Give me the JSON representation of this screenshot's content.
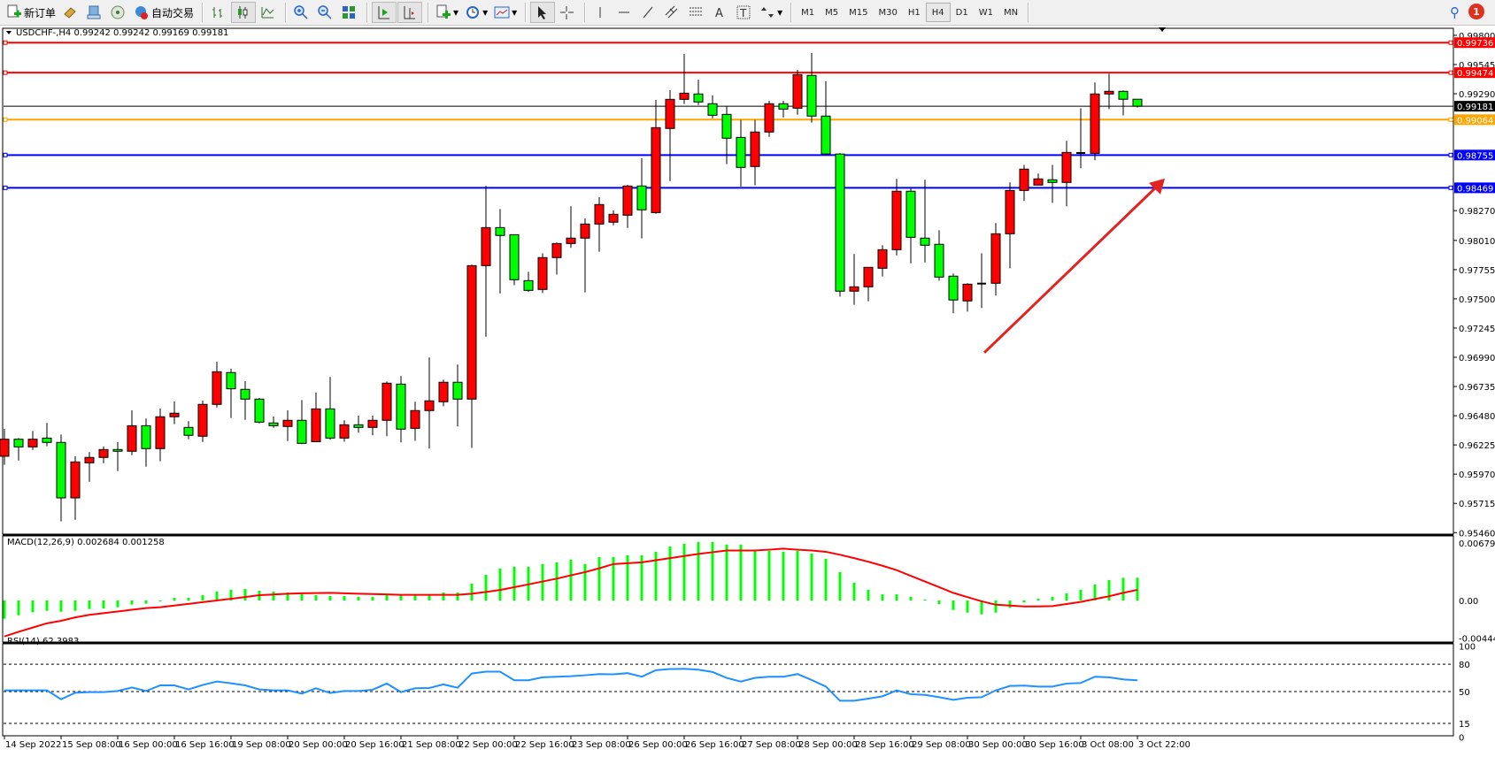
{
  "toolbar": {
    "new_order": "新订单",
    "auto_trading": "自动交易",
    "timeframes": [
      "M1",
      "M5",
      "M15",
      "M30",
      "H1",
      "H4",
      "D1",
      "W1",
      "MN"
    ],
    "active_timeframe": "H4",
    "notification_count": "1",
    "icons": [
      "new-order-icon",
      "history-icon",
      "market-watch-icon",
      "signals-icon",
      "auto-trading-icon",
      "bar-chart-icon",
      "candlestick-icon",
      "line-chart-icon",
      "zoom-in-icon",
      "zoom-out-icon",
      "tile-windows-icon",
      "autoscroll-icon",
      "chart-shift-icon",
      "indicators-icon",
      "periods-icon",
      "templates-icon",
      "cursor-icon",
      "crosshair-icon",
      "vertical-line-icon",
      "horizontal-line-icon",
      "trendline-icon",
      "equidistant-channel-icon",
      "fibonacci-icon",
      "text-icon",
      "text-label-icon",
      "arrows-icon",
      "search-icon",
      "notification-icon"
    ]
  },
  "chart_header": "USDCHF-,H4  0.99242 0.99242 0.99169 0.99181",
  "colors": {
    "bull": "#ff0000",
    "bear": "#00ff00",
    "macd_hist": "#00ff00",
    "signal": "#ff0000",
    "rsi": "#1e90ff",
    "resistance": "#ff0000",
    "pivot": "#ffa500",
    "support": "#0000ff",
    "arrow": "#e32222"
  },
  "chart_data": [
    {
      "type": "candlestick",
      "symbol": "USDCHF-",
      "timeframe": "H4",
      "ylim": [
        0.9546,
        0.998
      ],
      "price_ticks": [
        "0.99800",
        "0.99545",
        "0.99290",
        "0.98270",
        "0.98010",
        "0.97755",
        "0.97500",
        "0.97245",
        "0.96990",
        "0.96735",
        "0.96480",
        "0.96225",
        "0.95970",
        "0.95715",
        "0.95460"
      ],
      "time_labels": [
        {
          "bar": 0,
          "label": "14 Sep 2022"
        },
        {
          "bar": 4,
          "label": "15 Sep 08:00"
        },
        {
          "bar": 8,
          "label": "16 Sep 00:00"
        },
        {
          "bar": 12,
          "label": "16 Sep 16:00"
        },
        {
          "bar": 16,
          "label": "19 Sep 08:00"
        },
        {
          "bar": 20,
          "label": "20 Sep 00:00"
        },
        {
          "bar": 24,
          "label": "20 Sep 16:00"
        },
        {
          "bar": 28,
          "label": "21 Sep 08:00"
        },
        {
          "bar": 32,
          "label": "22 Sep 00:00"
        },
        {
          "bar": 36,
          "label": "22 Sep 16:00"
        },
        {
          "bar": 40,
          "label": "23 Sep 08:00"
        },
        {
          "bar": 44,
          "label": "26 Sep 00:00"
        },
        {
          "bar": 48,
          "label": "26 Sep 16:00"
        },
        {
          "bar": 52,
          "label": "27 Sep 08:00"
        },
        {
          "bar": 56,
          "label": "28 Sep 00:00"
        },
        {
          "bar": 60,
          "label": "28 Sep 16:00"
        },
        {
          "bar": 64,
          "label": "29 Sep 08:00"
        },
        {
          "bar": 68,
          "label": "30 Sep 00:00"
        },
        {
          "bar": 72,
          "label": "30 Sep 16:00"
        },
        {
          "bar": 76,
          "label": "3 Oct 08:00"
        },
        {
          "bar": 80,
          "label": "3 Oct 22:00"
        }
      ],
      "ohlc": [
        [
          0.96126,
          0.96365,
          0.96051,
          0.96275
        ],
        [
          0.96275,
          0.96285,
          0.96089,
          0.96208
        ],
        [
          0.96208,
          0.96347,
          0.96182,
          0.96275
        ],
        [
          0.96285,
          0.96417,
          0.96213,
          0.96247
        ],
        [
          0.96247,
          0.96316,
          0.95557,
          0.95763
        ],
        [
          0.95763,
          0.96126,
          0.95572,
          0.96077
        ],
        [
          0.96069,
          0.96162,
          0.95904,
          0.96116
        ],
        [
          0.96116,
          0.96211,
          0.96066,
          0.96185
        ],
        [
          0.96185,
          0.96249,
          0.95997,
          0.9617
        ],
        [
          0.9617,
          0.96527,
          0.96136,
          0.96393
        ],
        [
          0.96393,
          0.96455,
          0.96035,
          0.96193
        ],
        [
          0.96193,
          0.96542,
          0.96082,
          0.96471
        ],
        [
          0.96471,
          0.96604,
          0.96406,
          0.96502
        ],
        [
          0.96378,
          0.96432,
          0.96275,
          0.96309
        ],
        [
          0.96301,
          0.96612,
          0.96251,
          0.96579
        ],
        [
          0.96579,
          0.96951,
          0.96552,
          0.96864
        ],
        [
          0.96857,
          0.9689,
          0.9646,
          0.96715
        ],
        [
          0.9671,
          0.96782,
          0.96444,
          0.96625
        ],
        [
          0.96625,
          0.96635,
          0.96413,
          0.96424
        ],
        [
          0.96417,
          0.96473,
          0.96375,
          0.96393
        ],
        [
          0.96386,
          0.96527,
          0.96259,
          0.9644
        ],
        [
          0.9644,
          0.96617,
          0.96232,
          0.96239
        ],
        [
          0.96253,
          0.96681,
          0.96253,
          0.9654
        ],
        [
          0.9654,
          0.96818,
          0.9627,
          0.96285
        ],
        [
          0.96285,
          0.9644,
          0.96253,
          0.96401
        ],
        [
          0.96401,
          0.96481,
          0.96332,
          0.96378
        ],
        [
          0.96378,
          0.96481,
          0.96309,
          0.9644
        ],
        [
          0.9644,
          0.96779,
          0.96301,
          0.96764
        ],
        [
          0.96756,
          0.96826,
          0.96247,
          0.96363
        ],
        [
          0.9637,
          0.96602,
          0.96262,
          0.96525
        ],
        [
          0.96525,
          0.96988,
          0.96193,
          0.9661
        ],
        [
          0.96602,
          0.96795,
          0.96563,
          0.96772
        ],
        [
          0.96772,
          0.96926,
          0.96386,
          0.96625
        ],
        [
          0.96625,
          0.97798,
          0.962,
          0.9779
        ],
        [
          0.9779,
          0.98485,
          0.9717,
          0.98122
        ],
        [
          0.98122,
          0.98284,
          0.97548,
          0.98053
        ],
        [
          0.9806,
          0.9806,
          0.9762,
          0.97667
        ],
        [
          0.97659,
          0.97736,
          0.97559,
          0.97574
        ],
        [
          0.97582,
          0.97898,
          0.97551,
          0.9786
        ],
        [
          0.9786,
          0.97991,
          0.97713,
          0.97983
        ],
        [
          0.97983,
          0.98308,
          0.97945,
          0.9803
        ],
        [
          0.9803,
          0.98202,
          0.97556,
          0.98153
        ],
        [
          0.98153,
          0.98387,
          0.97911,
          0.98323
        ],
        [
          0.98169,
          0.98271,
          0.98142,
          0.98238
        ],
        [
          0.9823,
          0.98493,
          0.98119,
          0.98485
        ],
        [
          0.98485,
          0.98727,
          0.98027,
          0.98277
        ],
        [
          0.98253,
          0.99236,
          0.98243,
          0.98994
        ],
        [
          0.98987,
          0.99321,
          0.98528,
          0.99241
        ],
        [
          0.99241,
          0.99637,
          0.992,
          0.99295
        ],
        [
          0.99288,
          0.99413,
          0.99192,
          0.99218
        ],
        [
          0.99203,
          0.99275,
          0.99076,
          0.99102
        ],
        [
          0.9911,
          0.9918,
          0.98675,
          0.98902
        ],
        [
          0.98909,
          0.99061,
          0.9848,
          0.98647
        ],
        [
          0.98655,
          0.99061,
          0.9849,
          0.98956
        ],
        [
          0.98956,
          0.99228,
          0.98914,
          0.99203
        ],
        [
          0.99203,
          0.99228,
          0.99084,
          0.99156
        ],
        [
          0.99164,
          0.99498,
          0.99107,
          0.99457
        ],
        [
          0.9945,
          0.99645,
          0.99038,
          0.99095
        ],
        [
          0.99095,
          0.99398,
          0.98764,
          0.98764
        ],
        [
          0.98764,
          0.98771,
          0.9752,
          0.97567
        ],
        [
          0.97567,
          0.97891,
          0.97448,
          0.97605
        ],
        [
          0.97605,
          0.97775,
          0.97479,
          0.97775
        ],
        [
          0.97767,
          0.97968,
          0.97695,
          0.97929
        ],
        [
          0.97929,
          0.98547,
          0.9788,
          0.98439
        ],
        [
          0.98439,
          0.98462,
          0.9781,
          0.98037
        ],
        [
          0.9803,
          0.98539,
          0.97818,
          0.97968
        ],
        [
          0.97976,
          0.98099,
          0.97659,
          0.9769
        ],
        [
          0.97698,
          0.97721,
          0.97374,
          0.9749
        ],
        [
          0.97482,
          0.97636,
          0.97389,
          0.97628
        ],
        [
          0.97633,
          0.97898,
          0.9742,
          0.97633
        ],
        [
          0.97636,
          0.98161,
          0.97528,
          0.98068
        ],
        [
          0.98068,
          0.98516,
          0.97767,
          0.98446
        ],
        [
          0.98446,
          0.9867,
          0.98354,
          0.98632
        ],
        [
          0.98493,
          0.98593,
          0.98493,
          0.98547
        ],
        [
          0.98539,
          0.9867,
          0.98338,
          0.98516
        ],
        [
          0.98516,
          0.98879,
          0.98308,
          0.98778
        ],
        [
          0.98773,
          0.99164,
          0.9864,
          0.98773
        ],
        [
          0.9877,
          0.99388,
          0.98709,
          0.99288
        ],
        [
          0.99288,
          0.99465,
          0.99156,
          0.99311
        ],
        [
          0.99311,
          0.99319,
          0.99102,
          0.99242
        ],
        [
          0.99242,
          0.99242,
          0.99169,
          0.99181
        ]
      ],
      "horizontal_lines": [
        {
          "price": "0.99736",
          "role": "resistance"
        },
        {
          "price": "0.99474",
          "role": "resistance"
        },
        {
          "price": "0.99064",
          "role": "pivot"
        },
        {
          "price": "0.98755",
          "role": "support"
        },
        {
          "price": "0.98469",
          "role": "support"
        }
      ],
      "current_price": "0.99181",
      "trend_arrow": {
        "from": {
          "bar": 69,
          "price": 0.9703
        },
        "to": {
          "bar": 80,
          "price": 0.9855
        }
      }
    },
    {
      "type": "bar+line",
      "title": "MACD(12,26,9) 0.002684 0.001258",
      "ylim": [
        -0.004442,
        0.00679
      ],
      "tick_labels": [
        "0.00679",
        "0.00",
        "-0.004442"
      ],
      "histogram": [
        -0.00216,
        -0.00175,
        -0.0014,
        -0.00122,
        -0.00133,
        -0.00122,
        -0.00101,
        -0.00094,
        -0.0008,
        -0.00049,
        -0.00038,
        -0.0001,
        0.00031,
        0.00031,
        0.00063,
        0.00105,
        0.00125,
        0.00136,
        0.00115,
        0.00105,
        0.00094,
        0.00073,
        0.00063,
        0.00052,
        0.00052,
        0.00042,
        0.00042,
        0.00073,
        0.00063,
        0.00063,
        0.00063,
        0.00094,
        0.00094,
        0.00199,
        0.00303,
        0.00377,
        0.00398,
        0.00398,
        0.0043,
        0.0045,
        0.00481,
        0.0043,
        0.00513,
        0.00513,
        0.00534,
        0.00534,
        0.00576,
        0.00639,
        0.0067,
        0.0069,
        0.0069,
        0.0066,
        0.0066,
        0.00586,
        0.00586,
        0.00576,
        0.00586,
        0.00555,
        0.00492,
        0.00335,
        0.0021,
        0.00126,
        0.00073,
        0.00073,
        0.00042,
        0.0001,
        -0.00042,
        -0.00112,
        -0.00143,
        -0.00164,
        -0.00143,
        -0.00088,
        -0.00024,
        0.00021,
        0.00042,
        0.00084,
        0.00126,
        0.00188,
        0.00241,
        0.00268,
        0.002684
      ],
      "signal": [
        -0.00425,
        -0.0037,
        -0.0032,
        -0.0027,
        -0.0024,
        -0.002,
        -0.0017,
        -0.0015,
        -0.0013,
        -0.0011,
        -0.0009,
        -0.0008,
        -0.0006,
        -0.0004,
        -0.0002,
        0,
        0.0002,
        0.0004,
        0.00063,
        0.0007,
        0.0008,
        0.00085,
        0.00088,
        0.0009,
        0.00085,
        0.0008,
        0.00076,
        0.00072,
        0.00067,
        0.00067,
        0.00067,
        0.00067,
        0.00067,
        0.0008,
        0.001,
        0.00124,
        0.00157,
        0.0019,
        0.00224,
        0.00258,
        0.00297,
        0.00335,
        0.0038,
        0.0043,
        0.0044,
        0.0045,
        0.00475,
        0.005,
        0.00525,
        0.0055,
        0.0057,
        0.0059,
        0.0059,
        0.0059,
        0.006,
        0.00612,
        0.006,
        0.0059,
        0.00575,
        0.0054,
        0.005,
        0.00458,
        0.0041,
        0.00358,
        0.0029,
        0.00224,
        0.00157,
        0.0009,
        0.0004,
        -0.0001,
        -0.0005,
        -0.0006,
        -0.0007,
        -0.0007,
        -0.00067,
        -0.00042,
        -0.00017,
        0.00017,
        0.0005,
        0.0009,
        0.001258
      ]
    },
    {
      "type": "line",
      "title": "RSI(14) 62.3983",
      "ylim": [
        0,
        100
      ],
      "tick_labels": [
        "100",
        "80",
        "50",
        "15",
        "0"
      ],
      "levels": [
        80,
        50,
        15
      ],
      "values": [
        51.3,
        51.3,
        51.3,
        51.3,
        41.5,
        48.7,
        49.4,
        49.4,
        50.6,
        54.5,
        50.6,
        56.8,
        56.8,
        52.3,
        57.2,
        61,
        59.1,
        56.8,
        52.3,
        51.3,
        51.3,
        47.7,
        53.6,
        48.4,
        50.6,
        50.6,
        52,
        58.8,
        49.4,
        53.6,
        53.9,
        57.8,
        54.2,
        69.8,
        71.8,
        71.8,
        62.4,
        62.4,
        65.6,
        66.3,
        66.9,
        67.9,
        69.2,
        68.9,
        70.2,
        66.3,
        73.4,
        74.7,
        75,
        74,
        71.5,
        65,
        61,
        65,
        66.3,
        66.3,
        69.2,
        62.7,
        55.5,
        39.9,
        39.9,
        42.2,
        44.8,
        51.3,
        47.1,
        46.4,
        43.8,
        40.9,
        43.2,
        43.8,
        51.3,
        56.2,
        56.5,
        55.5,
        55.5,
        58.8,
        59.4,
        66.3,
        65.6,
        63.3,
        62.3983
      ]
    }
  ]
}
